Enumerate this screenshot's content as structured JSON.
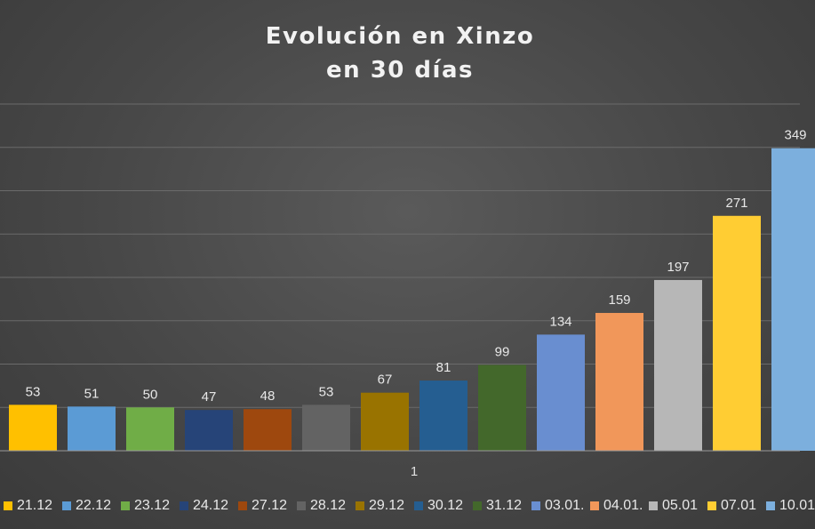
{
  "chart_data": {
    "type": "bar",
    "title_lines": [
      "Evolución en Xinzo",
      "en 30 días"
    ],
    "categories": [
      "1"
    ],
    "series": [
      {
        "name": "21.12",
        "values": [
          53
        ],
        "color": "#ffc000"
      },
      {
        "name": "22.12",
        "values": [
          51
        ],
        "color": "#5b9bd5"
      },
      {
        "name": "23.12",
        "values": [
          50
        ],
        "color": "#70ad47"
      },
      {
        "name": "24.12",
        "values": [
          47
        ],
        "color": "#264478"
      },
      {
        "name": "27.12",
        "values": [
          48
        ],
        "color": "#9e480e"
      },
      {
        "name": "28.12",
        "values": [
          53
        ],
        "color": "#636363"
      },
      {
        "name": "29.12",
        "values": [
          67
        ],
        "color": "#997300"
      },
      {
        "name": "30.12",
        "values": [
          81
        ],
        "color": "#255e91"
      },
      {
        "name": "31.12",
        "values": [
          99
        ],
        "color": "#43682b"
      },
      {
        "name": "03.01.",
        "values": [
          134
        ],
        "color": "#698ed0"
      },
      {
        "name": "04.01.",
        "values": [
          159
        ],
        "color": "#f1975a"
      },
      {
        "name": "05.01",
        "values": [
          197
        ],
        "color": "#b7b7b7"
      },
      {
        "name": "07.01",
        "values": [
          271
        ],
        "color": "#ffcd33"
      },
      {
        "name": "10.01",
        "values": [
          349
        ],
        "color": "#7cafdd"
      }
    ],
    "data_labels": [
      "53",
      "51",
      "50",
      "47",
      "48",
      "53",
      "67",
      "81",
      "99",
      "134",
      "159",
      "197",
      "271",
      "349"
    ],
    "ylim": [
      0,
      400
    ],
    "grid": true,
    "legend_position": "bottom"
  }
}
